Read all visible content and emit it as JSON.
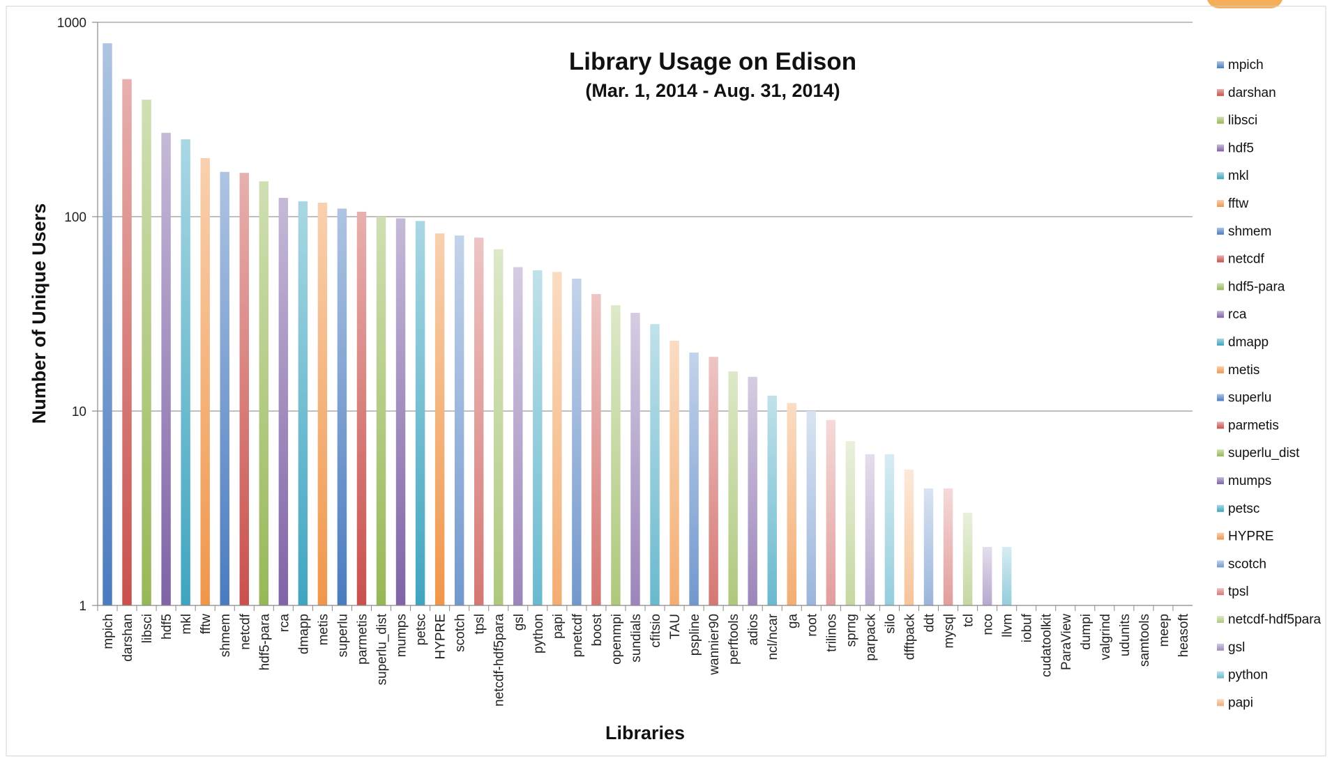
{
  "chart_data": {
    "type": "bar",
    "title": "Library Usage on Edison",
    "subtitle": "(Mar. 1, 2014 - Aug. 31, 2014)",
    "xlabel": "Libraries",
    "ylabel": "Number of Unique Users",
    "yscale": "log",
    "ylim": [
      1,
      1000
    ],
    "yticks": [
      "1",
      "10",
      "100",
      "1000"
    ],
    "grid": true,
    "legend_position": "right",
    "categories": [
      "mpich",
      "darshan",
      "libsci",
      "hdf5",
      "mkl",
      "fftw",
      "shmem",
      "netcdf",
      "hdf5-para",
      "rca",
      "dmapp",
      "metis",
      "superlu",
      "parmetis",
      "superlu_dist",
      "mumps",
      "petsc",
      "HYPRE",
      "scotch",
      "tpsl",
      "netcdf-hdf5para",
      "gsl",
      "python",
      "papi",
      "pnetcdf",
      "boost",
      "openmpi",
      "sundials",
      "cfitsio",
      "TAU",
      "pspline",
      "wannier90",
      "perftools",
      "adios",
      "ncl/ncar",
      "ga",
      "root",
      "trilinos",
      "sprng",
      "parpack",
      "silo",
      "dfftpack",
      "ddt",
      "mysql",
      "tcl",
      "nco",
      "llvm",
      "iobuf",
      "cudatoolkit",
      "ParaView",
      "dumpi",
      "valgrind",
      "udunits",
      "samtools",
      "meep",
      "heasoft"
    ],
    "values": [
      780,
      510,
      400,
      270,
      250,
      200,
      170,
      168,
      152,
      125,
      120,
      118,
      110,
      106,
      100,
      98,
      95,
      82,
      80,
      78,
      68,
      55,
      53,
      52,
      48,
      40,
      35,
      32,
      28,
      23,
      20,
      19,
      16,
      15,
      12,
      11,
      10,
      9,
      7,
      6,
      6,
      5,
      4,
      4,
      3,
      2,
      2,
      1,
      1,
      1,
      1,
      1,
      1,
      1,
      1,
      1
    ],
    "palette": [
      "#4a7bbf",
      "#c9504c",
      "#97b857",
      "#7f63a6",
      "#3fa5c0",
      "#f0964a"
    ],
    "legend": [
      "mpich",
      "darshan",
      "libsci",
      "hdf5",
      "mkl",
      "fftw",
      "shmem",
      "netcdf",
      "hdf5-para",
      "rca",
      "dmapp",
      "metis",
      "superlu",
      "parmetis",
      "superlu_dist",
      "mumps",
      "petsc",
      "HYPRE",
      "scotch",
      "tpsl",
      "netcdf-hdf5para",
      "gsl",
      "python",
      "papi"
    ]
  }
}
